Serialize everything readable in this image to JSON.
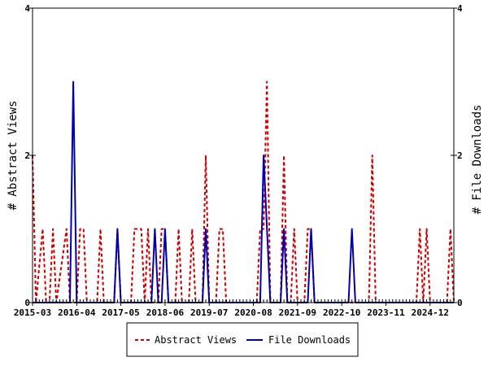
{
  "chart_data": {
    "type": "line",
    "title": "",
    "xlabel": "",
    "ylabel_left": "# Abstract Views",
    "ylabel_right": "# File Downloads",
    "x_start": "2015-03",
    "x_end": "2025-07",
    "x_tick_labels": [
      "2015-03",
      "2016-04",
      "2017-05",
      "2018-06",
      "2019-07",
      "2020-08",
      "2021-09",
      "2022-10",
      "2023-11",
      "2024-12"
    ],
    "ylim_left": [
      0,
      4
    ],
    "ylim_right": [
      0,
      4
    ],
    "y_tick_labels_left": [
      "0",
      "2",
      "4"
    ],
    "y_tick_labels_right": [
      "0",
      "2",
      "4"
    ],
    "grid": false,
    "legend_position": "bottom",
    "series": [
      {
        "name": "Abstract Views",
        "color": "#cc0000",
        "style": "dashed",
        "points": [
          [
            "2015-03",
            2
          ],
          [
            "2015-04",
            0
          ],
          [
            "2015-06",
            1
          ],
          [
            "2015-07",
            0
          ],
          [
            "2015-08",
            0
          ],
          [
            "2015-09",
            1
          ],
          [
            "2015-10",
            0
          ],
          [
            "2016-01",
            1
          ],
          [
            "2016-02",
            0
          ],
          [
            "2016-04",
            0
          ],
          [
            "2016-05",
            1
          ],
          [
            "2016-06",
            1
          ],
          [
            "2016-07",
            0
          ],
          [
            "2016-10",
            0
          ],
          [
            "2016-11",
            1
          ],
          [
            "2016-12",
            0
          ],
          [
            "2017-03",
            0
          ],
          [
            "2017-04",
            1
          ],
          [
            "2017-05",
            0
          ],
          [
            "2017-08",
            0
          ],
          [
            "2017-09",
            1
          ],
          [
            "2017-10",
            1
          ],
          [
            "2017-11",
            1
          ],
          [
            "2017-12",
            0
          ],
          [
            "2018-01",
            1
          ],
          [
            "2018-02",
            0
          ],
          [
            "2018-04",
            0
          ],
          [
            "2018-05",
            1
          ],
          [
            "2018-06",
            1
          ],
          [
            "2018-07",
            0
          ],
          [
            "2018-09",
            0
          ],
          [
            "2018-10",
            1
          ],
          [
            "2018-11",
            0
          ],
          [
            "2019-01",
            0
          ],
          [
            "2019-02",
            1
          ],
          [
            "2019-03",
            0
          ],
          [
            "2019-05",
            0
          ],
          [
            "2019-06",
            2
          ],
          [
            "2019-07",
            0
          ],
          [
            "2019-09",
            0
          ],
          [
            "2019-10",
            1
          ],
          [
            "2019-11",
            1
          ],
          [
            "2019-12",
            0
          ],
          [
            "2020-09",
            0
          ],
          [
            "2020-10",
            1
          ],
          [
            "2020-11",
            1
          ],
          [
            "2020-12",
            3
          ],
          [
            "2021-01",
            0
          ],
          [
            "2021-04",
            0
          ],
          [
            "2021-05",
            2
          ],
          [
            "2021-06",
            0
          ],
          [
            "2021-07",
            0
          ],
          [
            "2021-08",
            1
          ],
          [
            "2021-09",
            0
          ],
          [
            "2021-11",
            0
          ],
          [
            "2021-12",
            1
          ],
          [
            "2022-01",
            1
          ],
          [
            "2022-02",
            0
          ],
          [
            "2023-06",
            0
          ],
          [
            "2023-07",
            2
          ],
          [
            "2023-08",
            0
          ],
          [
            "2024-08",
            0
          ],
          [
            "2024-09",
            1
          ],
          [
            "2024-10",
            0
          ],
          [
            "2024-11",
            1
          ],
          [
            "2024-12",
            0
          ],
          [
            "2025-05",
            0
          ],
          [
            "2025-06",
            1
          ],
          [
            "2025-07",
            0
          ]
        ]
      },
      {
        "name": "File Downloads",
        "color": "#0000aa",
        "style": "solid",
        "points": [
          [
            "2015-03",
            0
          ],
          [
            "2016-02",
            0
          ],
          [
            "2016-03",
            3
          ],
          [
            "2016-04",
            0
          ],
          [
            "2017-03",
            0
          ],
          [
            "2017-04",
            1
          ],
          [
            "2017-05",
            0
          ],
          [
            "2018-02",
            0
          ],
          [
            "2018-03",
            1
          ],
          [
            "2018-04",
            0
          ],
          [
            "2018-05",
            0
          ],
          [
            "2018-06",
            1
          ],
          [
            "2018-07",
            0
          ],
          [
            "2019-05",
            0
          ],
          [
            "2019-06",
            1
          ],
          [
            "2019-07",
            0
          ],
          [
            "2020-10",
            0
          ],
          [
            "2020-11",
            2
          ],
          [
            "2021-01",
            0
          ],
          [
            "2021-04",
            0
          ],
          [
            "2021-05",
            1
          ],
          [
            "2021-06",
            0
          ],
          [
            "2021-12",
            0
          ],
          [
            "2022-01",
            1
          ],
          [
            "2022-02",
            0
          ],
          [
            "2022-12",
            0
          ],
          [
            "2023-01",
            1
          ],
          [
            "2023-02",
            0
          ],
          [
            "2025-07",
            0
          ]
        ]
      }
    ]
  }
}
